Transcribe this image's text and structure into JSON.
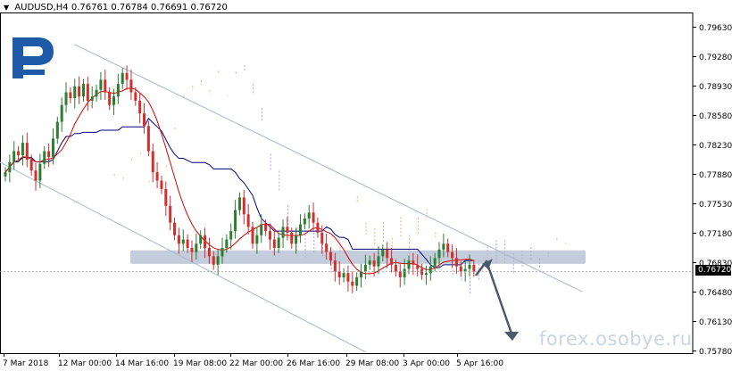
{
  "header": {
    "menu_arrow": "▼",
    "symbol": "AUDUSD,H4",
    "open": "0.76761",
    "high": "0.76784",
    "low": "0.76691",
    "close": "0.76720"
  },
  "current_price": "0.76720",
  "watermark": "forex.osobye.ru",
  "logo_name": "R",
  "colors": {
    "bull_candle": "#2e7d32",
    "bear_candle": "#d32f2f",
    "tenkan": "#d50000",
    "kijun": "#000080",
    "cloud_orange": "#f0a35c",
    "cloud_purple": "#b388c8",
    "channel": "#b0c4d4",
    "zone": "#a9b8cc",
    "arrow": "#4a5a6a",
    "logo": "#1e5aa8"
  },
  "chart_data": {
    "type": "candlestick",
    "symbol": "AUDUSD",
    "timeframe": "H4",
    "ylim": [
      0.7578,
      0.7966
    ],
    "y_ticks": [
      "0.79630",
      "0.79280",
      "0.78930",
      "0.78580",
      "0.78230",
      "0.77880",
      "0.77530",
      "0.77180",
      "0.76830",
      "0.76480",
      "0.76130",
      "0.75780"
    ],
    "x_ticks": [
      "7 Mar 2018",
      "12 Mar 00:00",
      "14 Mar 16:00",
      "19 Mar 08:00",
      "22 Mar 00:00",
      "26 Mar 16:00",
      "29 Mar 08:00",
      "3 Apr 00:00",
      "5 Apr 16:00"
    ],
    "close_series": [
      0.779,
      0.7802,
      0.7815,
      0.781,
      0.7825,
      0.7805,
      0.7792,
      0.778,
      0.78,
      0.7815,
      0.7808,
      0.783,
      0.785,
      0.787,
      0.7885,
      0.7878,
      0.7892,
      0.788,
      0.7895,
      0.7875,
      0.788,
      0.7888,
      0.79,
      0.7885,
      0.787,
      0.788,
      0.7895,
      0.7908,
      0.79,
      0.7885,
      0.7875,
      0.786,
      0.7845,
      0.7815,
      0.779,
      0.778,
      0.777,
      0.775,
      0.773,
      0.7715,
      0.7705,
      0.771,
      0.77,
      0.7695,
      0.7705,
      0.7715,
      0.77,
      0.769,
      0.768,
      0.769,
      0.77,
      0.771,
      0.772,
      0.7745,
      0.776,
      0.774,
      0.7725,
      0.7705,
      0.7715,
      0.7728,
      0.772,
      0.771,
      0.77,
      0.7712,
      0.7725,
      0.7718,
      0.7705,
      0.7715,
      0.7728,
      0.7735,
      0.7742,
      0.773,
      0.7718,
      0.7705,
      0.7695,
      0.7685,
      0.7672,
      0.7665,
      0.767,
      0.766,
      0.7655,
      0.7665,
      0.7672,
      0.768,
      0.7685,
      0.7678,
      0.769,
      0.7698,
      0.7688,
      0.768,
      0.7672,
      0.7665,
      0.7675,
      0.7685,
      0.768,
      0.7675,
      0.7668,
      0.767,
      0.7678,
      0.7688,
      0.7698,
      0.7705,
      0.7695,
      0.7688,
      0.7678,
      0.7672,
      0.7675,
      0.768,
      0.7672
    ],
    "horizontal_zone": [
      0.7681,
      0.7697
    ],
    "forecast": {
      "type": "arrow",
      "from": 0.7675,
      "to": 0.7584
    }
  }
}
